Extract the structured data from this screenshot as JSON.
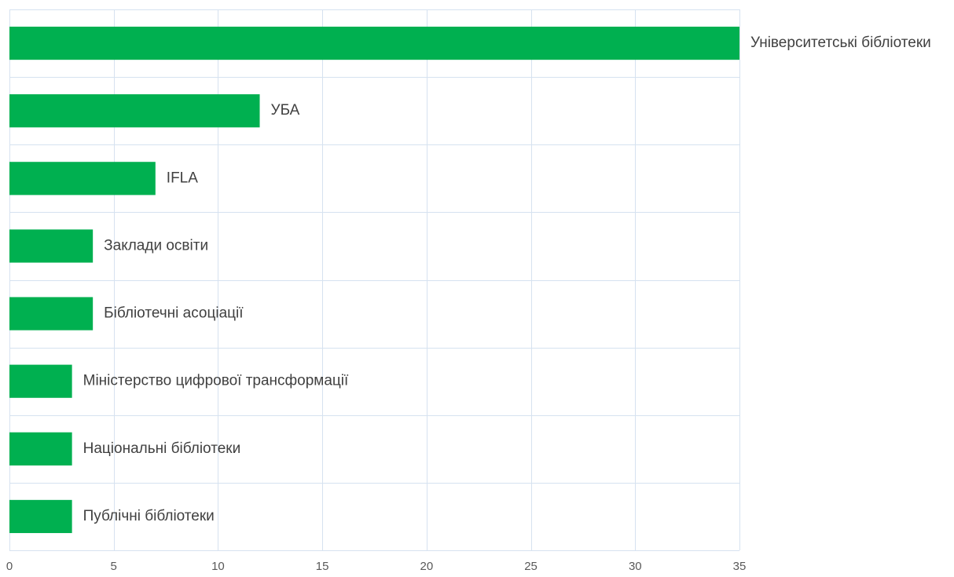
{
  "chart_data": {
    "type": "bar",
    "orientation": "horizontal",
    "categories": [
      "Університетські бібліотеки",
      "УБА",
      "IFLA",
      "Заклади освіти",
      "Бібліотечні асоціації",
      "Міністерство цифрової трансформації",
      "Національні бібліотеки",
      "Публічні бібліотеки"
    ],
    "values": [
      35,
      12,
      7,
      4,
      4,
      3,
      3,
      3
    ],
    "xlim": [
      0,
      35
    ],
    "xticks": [
      0,
      5,
      10,
      15,
      20,
      25,
      30,
      35
    ],
    "title": "",
    "xlabel": "",
    "ylabel": "",
    "grid": true,
    "legend": "none",
    "bar_color": "#00b050",
    "grid_color": "#d6e2f0",
    "label_position": "after-bar"
  }
}
